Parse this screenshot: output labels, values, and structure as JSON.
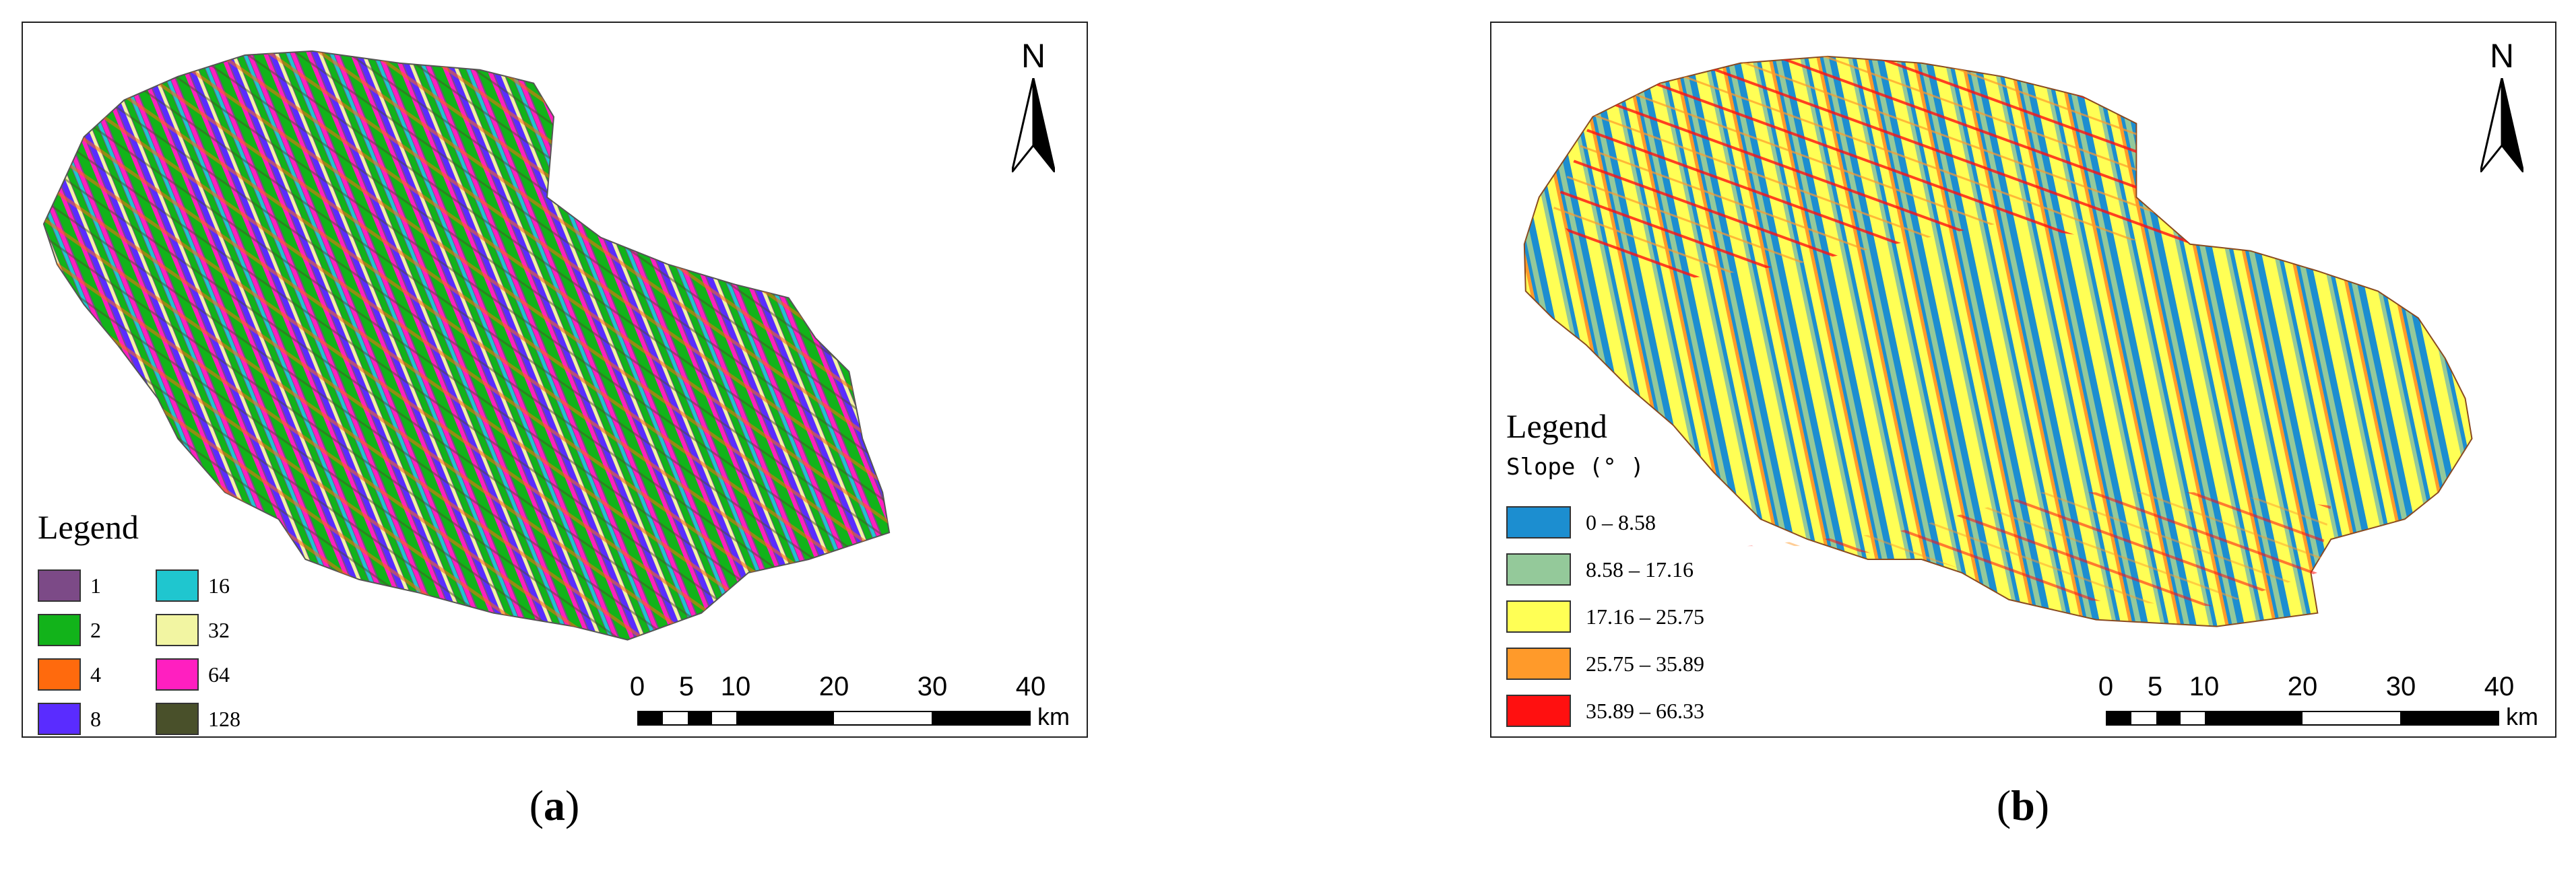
{
  "panels": [
    {
      "id": "a",
      "caption_letter": "a",
      "north_label": "N",
      "legend_title": "Legend",
      "legend_items": [
        {
          "label": "1",
          "color": "#7c4a87"
        },
        {
          "label": "2",
          "color": "#12b31a"
        },
        {
          "label": "4",
          "color": "#ff6a0d"
        },
        {
          "label": "8",
          "color": "#5a2cff"
        },
        {
          "label": "16",
          "color": "#1fc6cf"
        },
        {
          "label": "32",
          "color": "#f2f5a2"
        },
        {
          "label": "64",
          "color": "#ff1fc0"
        },
        {
          "label": "128",
          "color": "#49502a"
        }
      ],
      "scale_labels": [
        "0",
        "5",
        "10",
        "20",
        "30",
        "40"
      ],
      "scale_unit": "km"
    },
    {
      "id": "b",
      "caption_letter": "b",
      "north_label": "N",
      "legend_title": "Legend",
      "legend_subtitle": "Slope (° )",
      "legend_items": [
        {
          "label": "0 – 8.58",
          "color": "#1c8ed0"
        },
        {
          "label": "8.58 – 17.16",
          "color": "#94c99a"
        },
        {
          "label": "17.16 – 25.75",
          "color": "#ffff55"
        },
        {
          "label": "25.75 – 35.89",
          "color": "#ff9a2a"
        },
        {
          "label": "35.89 – 66.33",
          "color": "#ff1010"
        }
      ],
      "scale_labels": [
        "0",
        "5",
        "10",
        "20",
        "30",
        "40"
      ],
      "scale_unit": "km"
    }
  ]
}
